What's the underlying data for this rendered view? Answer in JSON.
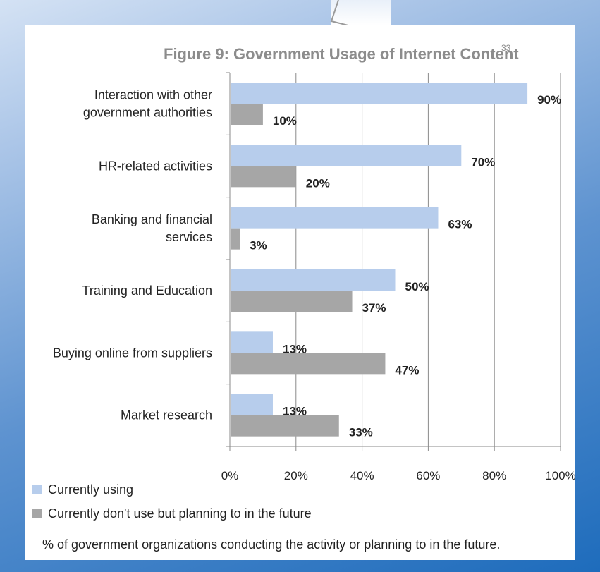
{
  "chart_data": {
    "type": "bar",
    "orientation": "horizontal",
    "title": "Figure 9: Government Usage of Internet Content",
    "title_superscript": "33",
    "categories": [
      [
        "Interaction with other",
        "government authorities"
      ],
      [
        "HR-related activities"
      ],
      [
        "Banking and financial",
        "services"
      ],
      [
        "Training and Education"
      ],
      [
        "Buying online from suppliers"
      ],
      [
        "Market research"
      ]
    ],
    "series": [
      {
        "name": "Currently using",
        "color": "#b7cdec",
        "values": [
          90,
          70,
          63,
          50,
          13,
          13
        ],
        "labels": [
          "90%",
          "70%",
          "63%",
          "50%",
          "13%",
          "13%"
        ]
      },
      {
        "name": "Currently don't use but planning to in the future",
        "color": "#a6a6a6",
        "values": [
          10,
          20,
          3,
          37,
          47,
          33
        ],
        "labels": [
          "10%",
          "20%",
          "3%",
          "37%",
          "47%",
          "33%"
        ]
      }
    ],
    "xlim": [
      0,
      100
    ],
    "xticks": [
      "0%",
      "20%",
      "40%",
      "60%",
      "80%",
      "100%"
    ],
    "grid": true,
    "legend_position": "bottom-left"
  },
  "footnote": "% of government organizations conducting the activity or planning to in the future."
}
